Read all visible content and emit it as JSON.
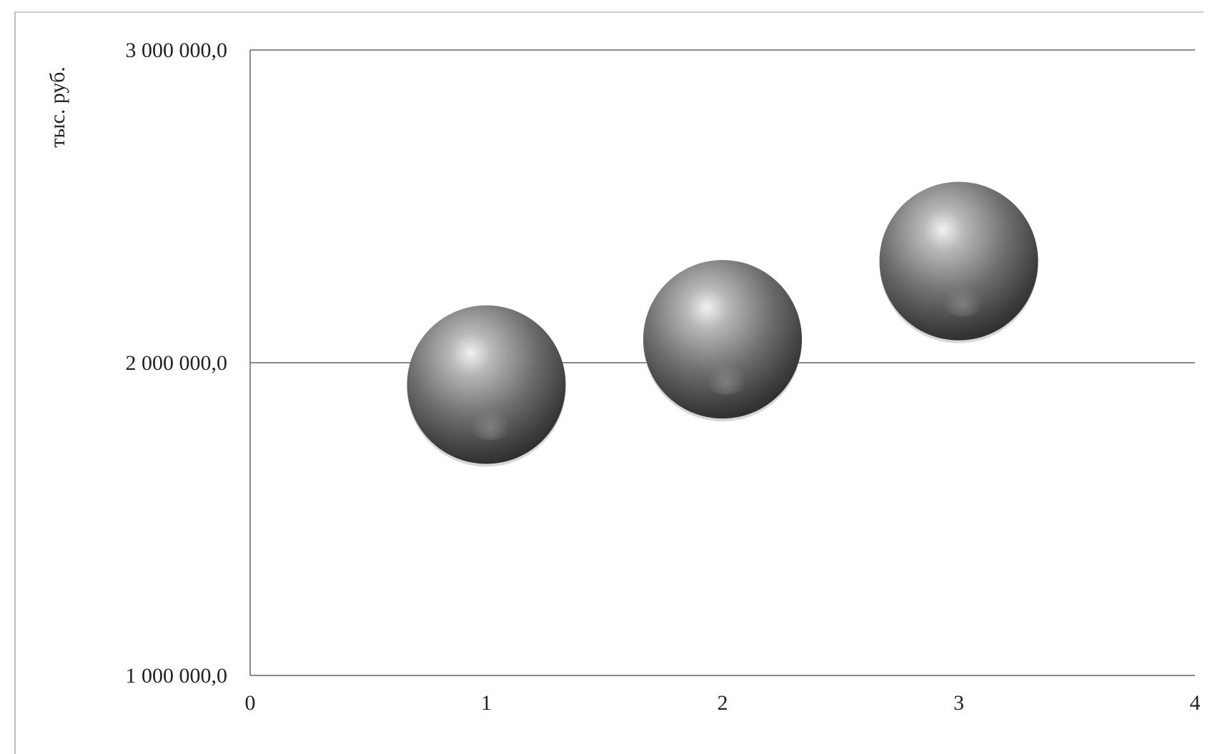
{
  "chart_data": {
    "type": "bubble",
    "title": "",
    "xlabel": "",
    "ylabel": "тыс. руб.",
    "x_ticks": [
      "0",
      "1",
      "2",
      "3",
      "4"
    ],
    "y_ticks": [
      "1 000 000,0",
      "2 000 000,0",
      "3 000 000,0"
    ],
    "xlim": [
      0,
      4
    ],
    "ylim": [
      1000000,
      3000000
    ],
    "grid": "horizontal",
    "legend": "none",
    "series": [
      {
        "points": [
          {
            "x": 1,
            "y": 1930000,
            "size": 1.0
          },
          {
            "x": 2,
            "y": 2075000,
            "size": 1.0
          },
          {
            "x": 3,
            "y": 2325000,
            "size": 1.0
          }
        ]
      }
    ],
    "colors": {
      "bubble_dark": "#3a3a3a",
      "bubble_mid": "#707070",
      "bubble_light": "#f0f0f0",
      "gridline": "#8a8a8a",
      "axis": "#8a8a8a"
    }
  }
}
